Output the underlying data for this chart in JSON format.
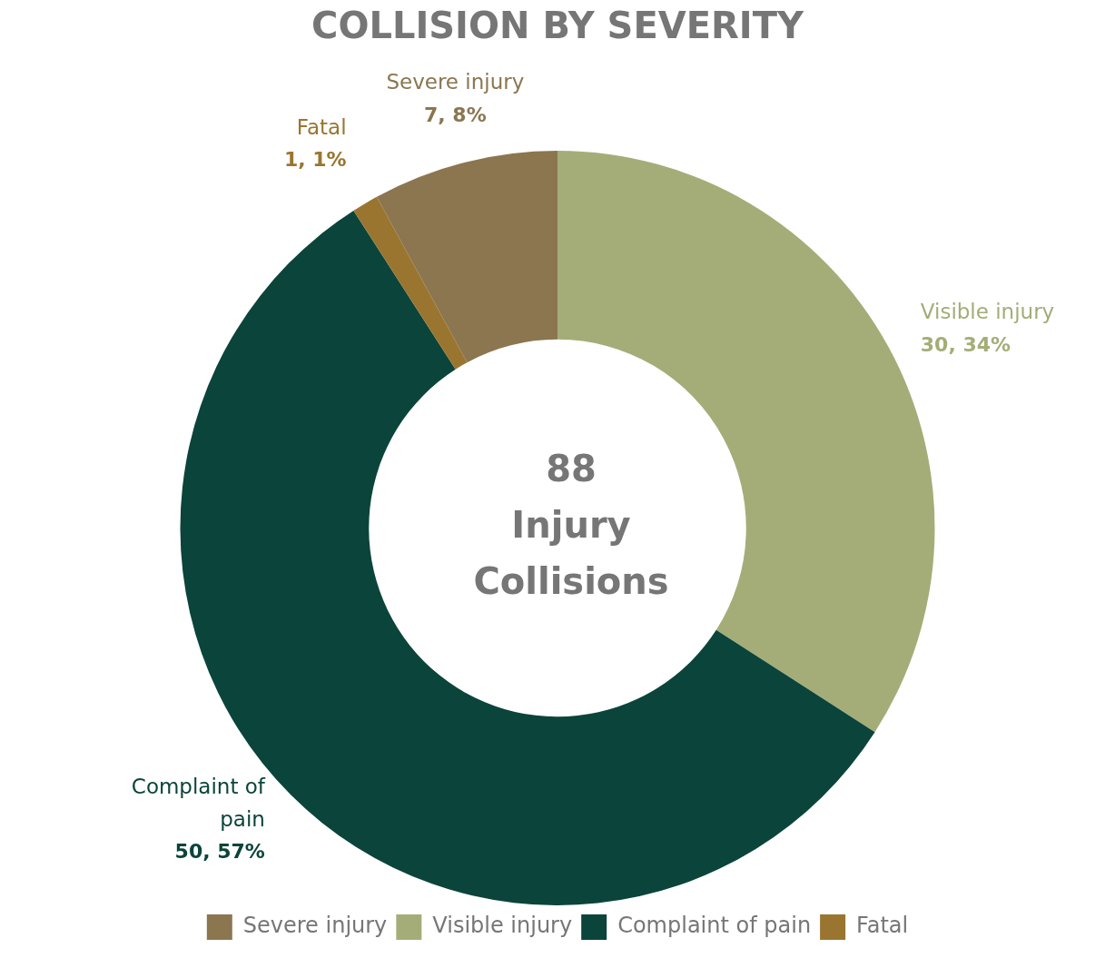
{
  "chart_data": {
    "type": "donut",
    "title": "COLLISION BY SEVERITY",
    "categories": [
      "Severe injury",
      "Visible injury",
      "Complaint of pain",
      "Fatal"
    ],
    "values": [
      7,
      30,
      50,
      1
    ],
    "colors": [
      "#8b7650",
      "#a4ad78",
      "#0b443a",
      "#9a7530"
    ],
    "value_labels": [
      "7, 8%",
      "30, 34%",
      "50, 57%",
      "1, 1%"
    ],
    "legend": "bottom",
    "annotations": [
      "88 Injury Collisions"
    ]
  }
}
